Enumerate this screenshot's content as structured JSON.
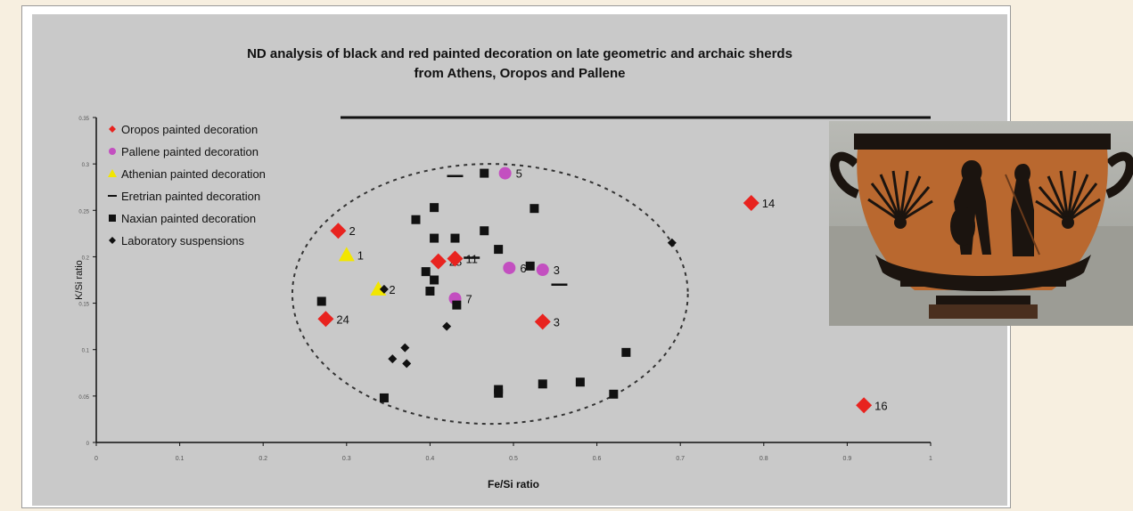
{
  "chart_data": {
    "type": "scatter",
    "title": "ND analysis of black and red painted decoration on late geometric and archaic sherds",
    "subtitle": "from Athens, Oropos and Pallene",
    "xlabel": "Fe/Si ratio",
    "ylabel": "K/Si ratio",
    "xlim": [
      0,
      1.0
    ],
    "ylim": [
      0,
      0.35
    ],
    "x_ticks": [
      "0",
      "0.1",
      "0.2",
      "0.3",
      "0.4",
      "0.5",
      "0.6",
      "0.7",
      "0.8",
      "0.9",
      "1"
    ],
    "y_ticks": [
      "0",
      "0.05",
      "0.1",
      "0.15",
      "0.2",
      "0.25",
      "0.3",
      "0.35"
    ],
    "legend_position": "top-left",
    "series": [
      {
        "name": "Oropos painted decoration",
        "marker": "diamond",
        "color": "#e8231f",
        "points": [
          {
            "x": 0.275,
            "y": 0.133,
            "label": "24"
          },
          {
            "x": 0.29,
            "y": 0.228,
            "label": "2"
          },
          {
            "x": 0.41,
            "y": 0.195,
            "label": "28"
          },
          {
            "x": 0.43,
            "y": 0.198,
            "label": "11"
          },
          {
            "x": 0.535,
            "y": 0.13,
            "label": "3"
          },
          {
            "x": 0.785,
            "y": 0.258,
            "label": "14"
          },
          {
            "x": 0.92,
            "y": 0.04,
            "label": "16"
          }
        ]
      },
      {
        "name": "Pallene painted decoration",
        "marker": "circle",
        "color": "#c34fc0",
        "points": [
          {
            "x": 0.49,
            "y": 0.29,
            "label": "5"
          },
          {
            "x": 0.495,
            "y": 0.188,
            "label": "6"
          },
          {
            "x": 0.535,
            "y": 0.186,
            "label": "3"
          },
          {
            "x": 0.43,
            "y": 0.155,
            "label": "7"
          }
        ]
      },
      {
        "name": "Athenian painted decoration",
        "marker": "triangle",
        "color": "#f2e600",
        "points": [
          {
            "x": 0.3,
            "y": 0.202,
            "label": "1"
          },
          {
            "x": 0.338,
            "y": 0.165,
            "label": "2"
          }
        ]
      },
      {
        "name": "Eretrian painted decoration",
        "marker": "dash",
        "color": "#111111",
        "points": [
          {
            "x": 0.43,
            "y": 0.287,
            "label": ""
          },
          {
            "x": 0.45,
            "y": 0.199,
            "label": ""
          },
          {
            "x": 0.555,
            "y": 0.17,
            "label": ""
          }
        ]
      },
      {
        "name": "Naxian painted decoration",
        "marker": "square",
        "color": "#111111",
        "points": [
          {
            "x": 0.465,
            "y": 0.29,
            "label": ""
          },
          {
            "x": 0.405,
            "y": 0.253,
            "label": ""
          },
          {
            "x": 0.383,
            "y": 0.24,
            "label": ""
          },
          {
            "x": 0.525,
            "y": 0.252,
            "label": ""
          },
          {
            "x": 0.465,
            "y": 0.228,
            "label": ""
          },
          {
            "x": 0.43,
            "y": 0.22,
            "label": ""
          },
          {
            "x": 0.405,
            "y": 0.22,
            "label": ""
          },
          {
            "x": 0.482,
            "y": 0.208,
            "label": ""
          },
          {
            "x": 0.395,
            "y": 0.184,
            "label": ""
          },
          {
            "x": 0.405,
            "y": 0.175,
            "label": ""
          },
          {
            "x": 0.4,
            "y": 0.163,
            "label": ""
          },
          {
            "x": 0.432,
            "y": 0.148,
            "label": ""
          },
          {
            "x": 0.27,
            "y": 0.152,
            "label": ""
          },
          {
            "x": 0.52,
            "y": 0.19,
            "label": ""
          },
          {
            "x": 0.635,
            "y": 0.097,
            "label": ""
          },
          {
            "x": 0.482,
            "y": 0.057,
            "label": ""
          },
          {
            "x": 0.482,
            "y": 0.053,
            "label": ""
          },
          {
            "x": 0.535,
            "y": 0.063,
            "label": ""
          },
          {
            "x": 0.58,
            "y": 0.065,
            "label": ""
          },
          {
            "x": 0.62,
            "y": 0.052,
            "label": ""
          },
          {
            "x": 0.345,
            "y": 0.048,
            "label": ""
          }
        ]
      },
      {
        "name": "Laboratory suspensions",
        "marker": "small-diamond",
        "color": "#111111",
        "points": [
          {
            "x": 0.345,
            "y": 0.165,
            "label": ""
          },
          {
            "x": 0.42,
            "y": 0.125,
            "label": ""
          },
          {
            "x": 0.37,
            "y": 0.102,
            "label": ""
          },
          {
            "x": 0.355,
            "y": 0.09,
            "label": ""
          },
          {
            "x": 0.372,
            "y": 0.085,
            "label": ""
          },
          {
            "x": 0.69,
            "y": 0.215,
            "label": ""
          }
        ]
      }
    ],
    "ellipse": {
      "center": [
        0.472,
        0.16
      ],
      "rx": 0.237,
      "ry": 0.14,
      "style": "dashed"
    }
  },
  "photo": {
    "description_icon": "black-figure-vase-photo-icon"
  },
  "colors": {
    "page_background": "#f7efe0",
    "chart_background": "#c9c9c9",
    "oropos": "#e8231f",
    "pallene": "#c34fc0",
    "athenian": "#f2e600"
  }
}
